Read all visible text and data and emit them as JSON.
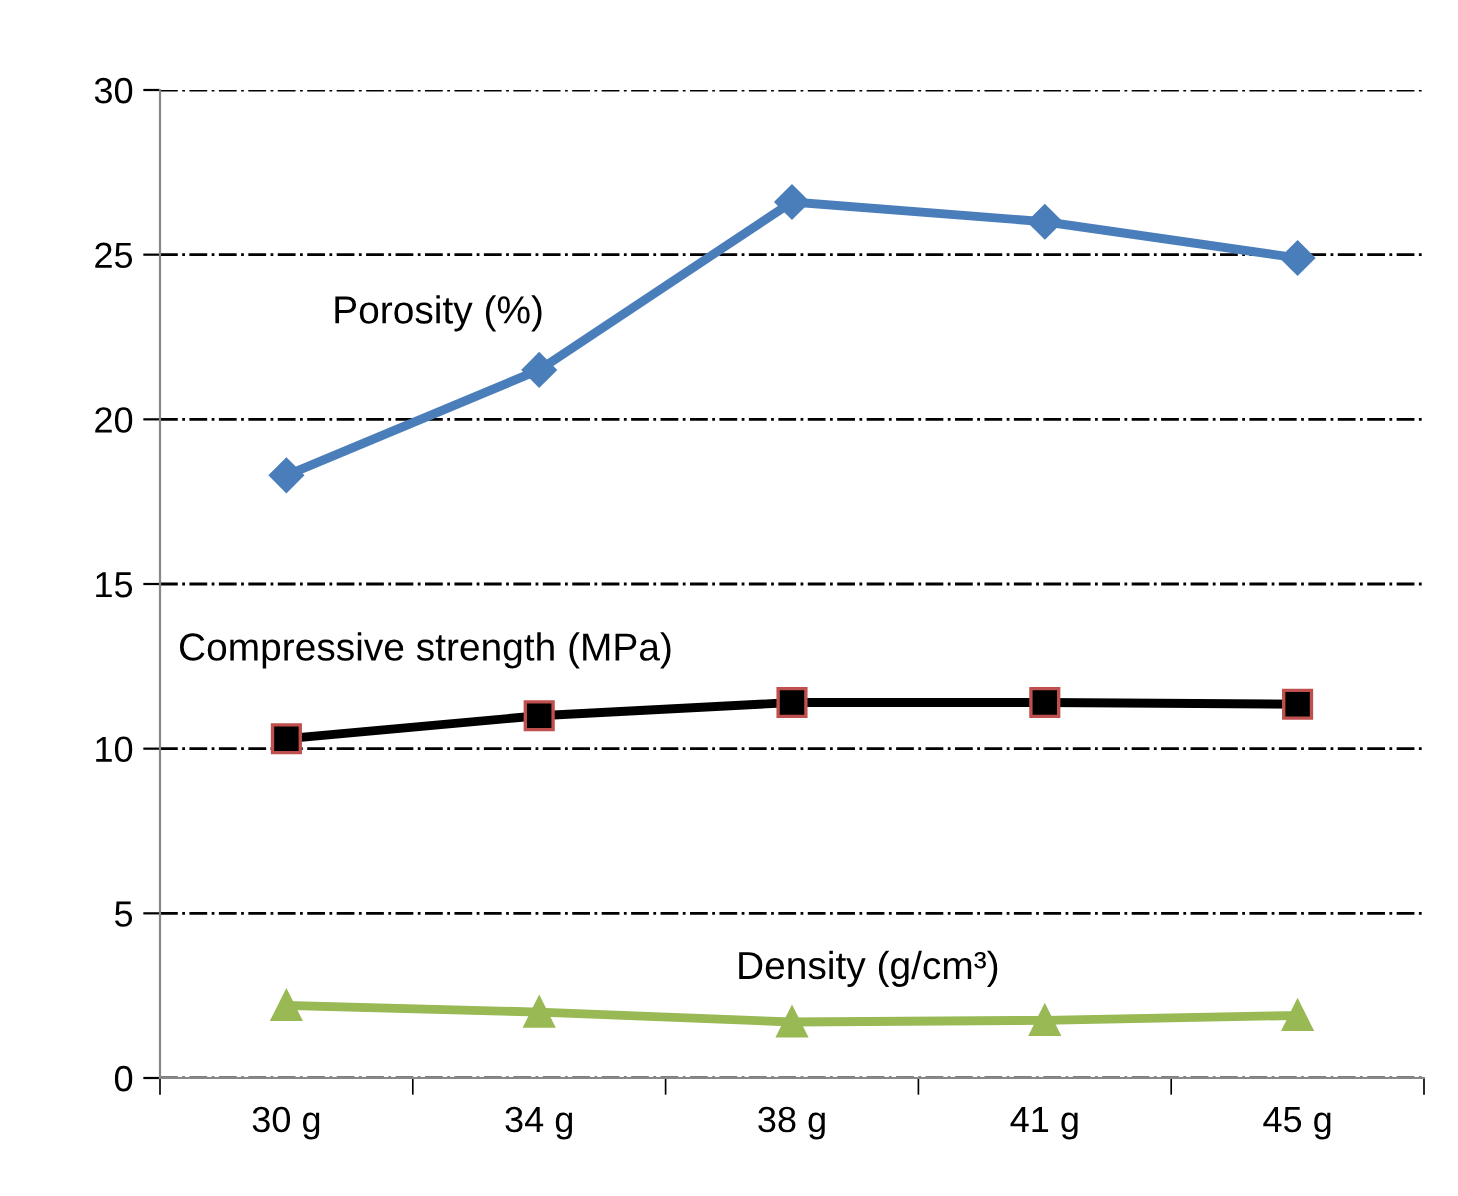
{
  "chart_data": {
    "type": "line",
    "categories": [
      "30 g",
      "34 g",
      "38 g",
      "41 g",
      "45 g"
    ],
    "series": [
      {
        "name": "Porosity (%)",
        "color": "#4a7ebb",
        "marker": "diamond",
        "values": [
          18.3,
          21.5,
          26.6,
          26.0,
          24.9
        ]
      },
      {
        "name": "Compressive strength (MPa)",
        "color": "#000000",
        "marker": "square",
        "values": [
          10.3,
          11.0,
          11.4,
          11.4,
          11.35
        ]
      },
      {
        "name": "Density (g/cm³)",
        "color": "#98b954",
        "marker": "triangle",
        "values": [
          2.2,
          2.0,
          1.7,
          1.75,
          1.9
        ]
      }
    ],
    "ylim": [
      0,
      30
    ],
    "yticks": [
      0,
      5,
      10,
      15,
      20,
      25,
      30
    ],
    "grid": "y",
    "legend": false,
    "line_style": "solid"
  }
}
